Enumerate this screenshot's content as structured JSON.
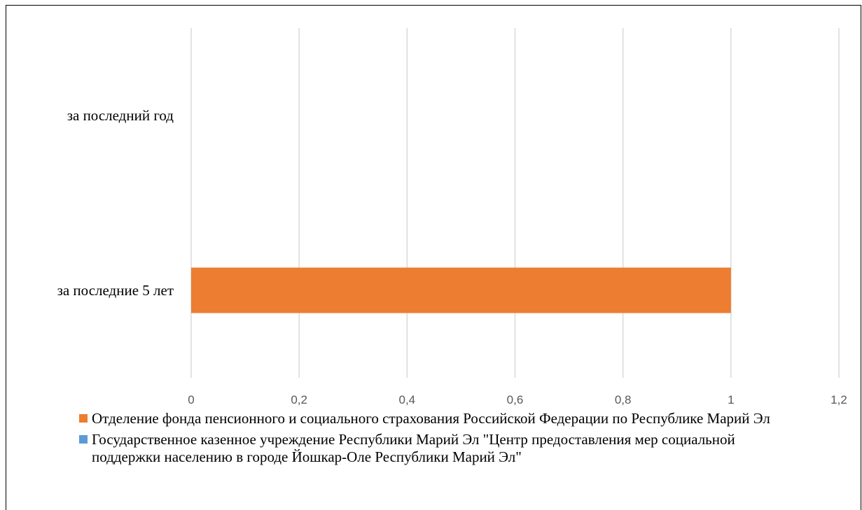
{
  "chart_data": {
    "type": "bar",
    "orientation": "horizontal",
    "categories": [
      "за последний год",
      "за последние 5 лет"
    ],
    "series": [
      {
        "name": "Отделение фонда пенсионного и социального страхования Российской Федерации по Республике Марий Эл",
        "color": "#ED7D31",
        "values": [
          0,
          1
        ]
      },
      {
        "name": "Государственное казенное учреждение Республики Марий Эл \"Центр предоставления мер социальной поддержки населению в городе Йошкар-Оле Республики Марий Эл\"",
        "color": "#5B9BD5",
        "values": [
          0,
          0
        ]
      }
    ],
    "xlim": [
      0,
      1.2
    ],
    "ticks": [
      "0",
      "0,2",
      "0,4",
      "0,6",
      "0,8",
      "1",
      "1,2"
    ],
    "grid": "vertical",
    "legend_position": "bottom"
  }
}
